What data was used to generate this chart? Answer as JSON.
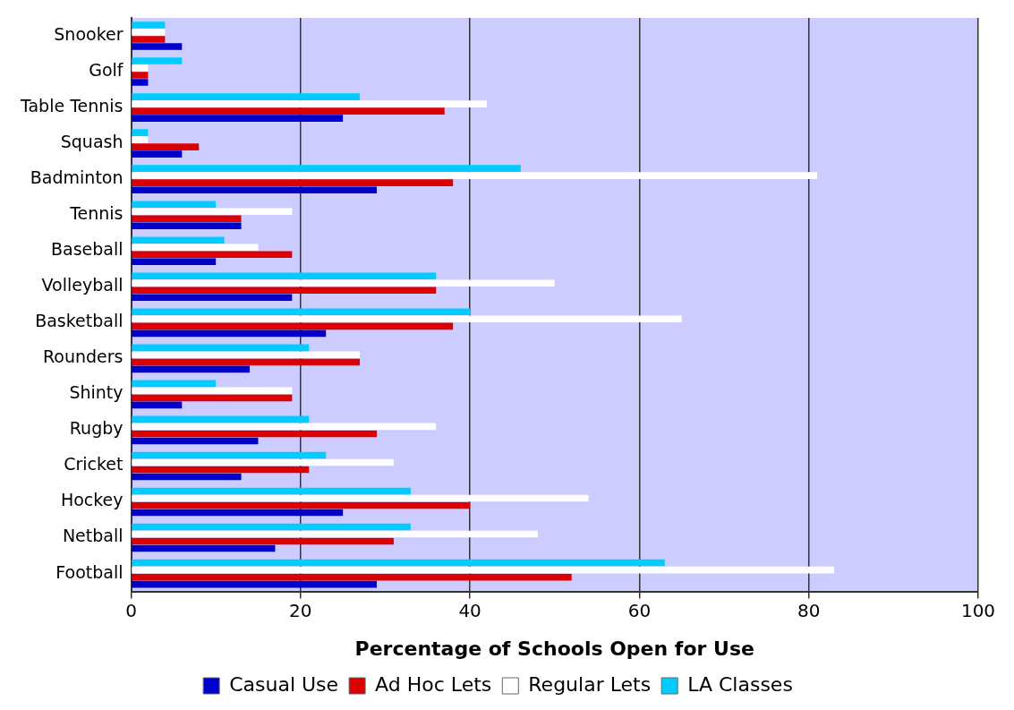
{
  "chart_data": {
    "type": "bar",
    "orientation": "horizontal",
    "xlabel": "Percentage of Schools Open for Use",
    "categories": [
      "Snooker",
      "Golf",
      "Table Tennis",
      "Squash",
      "Badminton",
      "Tennis",
      "Baseball",
      "Volleyball",
      "Basketball",
      "Rounders",
      "Shinty",
      "Rugby",
      "Cricket",
      "Hockey",
      "Netball",
      "Football"
    ],
    "series": [
      {
        "name": "Casual Use",
        "color": "#0000cc",
        "values": [
          6,
          2,
          25,
          6,
          29,
          13,
          10,
          19,
          23,
          14,
          6,
          15,
          13,
          25,
          17,
          29
        ]
      },
      {
        "name": "Ad Hoc Lets",
        "color": "#dd0000",
        "values": [
          4,
          2,
          37,
          8,
          38,
          13,
          19,
          36,
          38,
          27,
          19,
          29,
          21,
          40,
          31,
          52
        ]
      },
      {
        "name": "Regular Lets",
        "color": "#ffffff",
        "values": [
          4,
          2,
          42,
          2,
          81,
          19,
          15,
          50,
          65,
          27,
          19,
          36,
          31,
          54,
          48,
          83
        ]
      },
      {
        "name": "LA Classes",
        "color": "#00ccff",
        "values": [
          4,
          6,
          27,
          2,
          46,
          10,
          11,
          36,
          40,
          21,
          10,
          21,
          23,
          33,
          33,
          63
        ]
      }
    ],
    "xlim": [
      0,
      100
    ],
    "xticks": [
      0,
      20,
      40,
      60,
      80,
      100
    ],
    "grid": "x",
    "legend": "bottom"
  }
}
